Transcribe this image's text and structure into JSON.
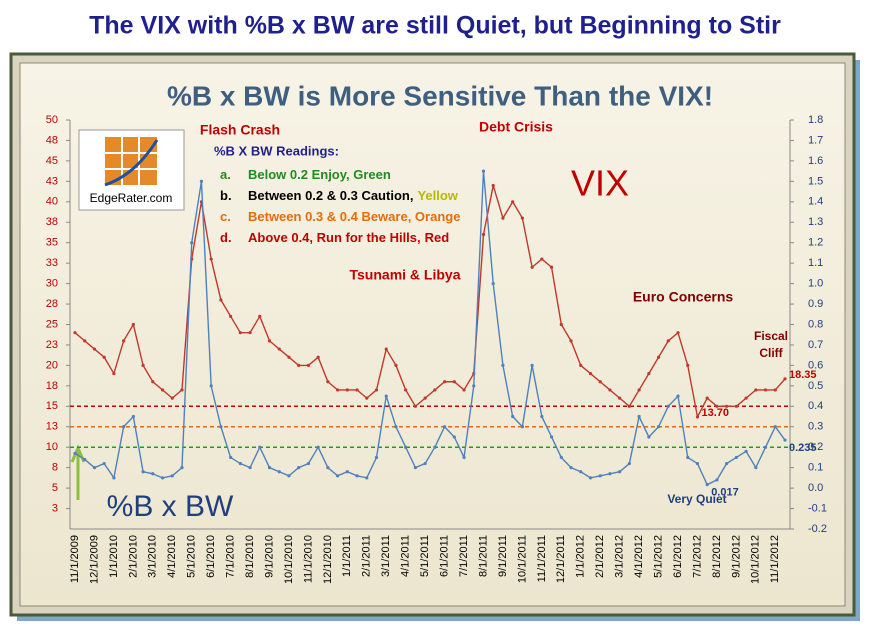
{
  "title": "The VIX with %B x BW are still Quiet, but Beginning to Stir",
  "chart_data": {
    "type": "line",
    "title": "%B x BW is More Sensitive Than the VIX!",
    "logo": "EdgeRater.com",
    "categories": [
      "11/1/2009",
      null,
      "12/1/2009",
      null,
      "1/1/2010",
      null,
      "2/1/2010",
      null,
      "3/1/2010",
      null,
      "4/1/2010",
      null,
      "5/1/2010",
      null,
      "6/1/2010",
      null,
      "7/1/2010",
      null,
      "8/1/2010",
      null,
      "9/1/2010",
      null,
      "10/1/2010",
      null,
      "11/1/2010",
      null,
      "12/1/2010",
      null,
      "1/1/2011",
      null,
      "2/1/2011",
      null,
      "3/1/2011",
      null,
      "4/1/2011",
      null,
      "5/1/2011",
      null,
      "6/1/2011",
      null,
      "7/1/2011",
      null,
      "8/1/2011",
      null,
      "9/1/2011",
      null,
      "10/1/2011",
      null,
      "11/1/2011",
      null,
      "12/1/2011",
      null,
      "1/1/2012",
      null,
      "2/1/2012",
      null,
      "3/1/2012",
      null,
      "4/1/2012",
      null,
      "5/1/2012",
      null,
      "6/1/2012",
      null,
      "7/1/2012",
      null,
      "8/1/2012",
      null,
      "9/1/2012",
      null,
      "10/1/2012",
      null,
      "11/1/2012",
      null
    ],
    "series": [
      {
        "name": "VIX",
        "color": "#c0392b",
        "axis": "y",
        "values": [
          24,
          23,
          22,
          21,
          19,
          23,
          25,
          20,
          18,
          17,
          16,
          17,
          33,
          40,
          33,
          28,
          26,
          24,
          24,
          26,
          23,
          22,
          21,
          20,
          20,
          21,
          18,
          17,
          17,
          17,
          16,
          17,
          22,
          20,
          17,
          15,
          16,
          17,
          18,
          18,
          17,
          19,
          36,
          42,
          38,
          40,
          38,
          32,
          33,
          32,
          25,
          23,
          20,
          19,
          18,
          17,
          16,
          15,
          17,
          19,
          21,
          23,
          24,
          20,
          13.7,
          16,
          15,
          15,
          15,
          16,
          17,
          17,
          17,
          18.35
        ],
        "value_labels": [
          null,
          null,
          null,
          null,
          null,
          null,
          null,
          null,
          null,
          null,
          null,
          null,
          null,
          null,
          null,
          null,
          null,
          null,
          null,
          null,
          null,
          null,
          null,
          null,
          null,
          null,
          null,
          null,
          null,
          null,
          null,
          null,
          null,
          null,
          null,
          null,
          null,
          null,
          null,
          null,
          null,
          null,
          null,
          null,
          null,
          null,
          null,
          null,
          null,
          null,
          null,
          null,
          null,
          null,
          null,
          null,
          null,
          null,
          null,
          null,
          null,
          null,
          null,
          null,
          "13.70",
          null,
          null,
          null,
          null,
          null,
          null,
          null,
          null,
          "18.35"
        ]
      },
      {
        "name": "%B x BW",
        "color": "#4f81bd",
        "axis": "y2",
        "values": [
          0.17,
          0.14,
          0.1,
          0.12,
          0.05,
          0.3,
          0.35,
          0.08,
          0.07,
          0.05,
          0.06,
          0.1,
          1.2,
          1.5,
          0.5,
          0.3,
          0.15,
          0.12,
          0.1,
          0.2,
          0.1,
          0.08,
          0.06,
          0.1,
          0.12,
          0.2,
          0.1,
          0.06,
          0.08,
          0.06,
          0.05,
          0.15,
          0.45,
          0.3,
          0.2,
          0.1,
          0.12,
          0.2,
          0.3,
          0.25,
          0.15,
          0.5,
          1.55,
          1.0,
          0.6,
          0.35,
          0.3,
          0.6,
          0.35,
          0.25,
          0.15,
          0.1,
          0.08,
          0.05,
          0.06,
          0.07,
          0.08,
          0.12,
          0.35,
          0.25,
          0.3,
          0.4,
          0.45,
          0.15,
          0.12,
          0.017,
          0.04,
          0.12,
          0.15,
          0.18,
          0.1,
          0.2,
          0.3,
          0.235
        ],
        "value_labels": [
          null,
          null,
          null,
          null,
          null,
          null,
          null,
          null,
          null,
          null,
          null,
          null,
          null,
          null,
          null,
          null,
          null,
          null,
          null,
          null,
          null,
          null,
          null,
          null,
          null,
          null,
          null,
          null,
          null,
          null,
          null,
          null,
          null,
          null,
          null,
          null,
          null,
          null,
          null,
          null,
          null,
          null,
          null,
          null,
          null,
          null,
          null,
          null,
          null,
          null,
          null,
          null,
          null,
          null,
          null,
          null,
          null,
          null,
          null,
          null,
          null,
          null,
          null,
          null,
          null,
          "0.017",
          null,
          null,
          null,
          null,
          null,
          null,
          null,
          "0.235"
        ]
      }
    ],
    "ylim": [
      0,
      50
    ],
    "yticks": [
      {
        "value": 2.5,
        "label": "3"
      },
      5,
      {
        "value": 7.5,
        "label": "8"
      },
      10,
      {
        "value": 12.5,
        "label": "13"
      },
      15,
      {
        "value": 17.5,
        "label": "18"
      },
      20,
      {
        "value": 22.5,
        "label": "23"
      },
      25,
      {
        "value": 27.5,
        "label": "28"
      },
      30,
      {
        "value": 32.5,
        "label": "33"
      },
      35,
      {
        "value": 37.5,
        "label": "38"
      },
      40,
      {
        "value": 42.5,
        "label": "43"
      },
      45,
      {
        "value": 47.5,
        "label": "48"
      },
      50
    ],
    "y2lim": [
      -0.2,
      1.8
    ],
    "y2ticks": [
      -0.2,
      -0.1,
      {
        "value": 0,
        "label": "0.0"
      },
      0.1,
      0.2,
      0.3,
      0.4,
      0.5,
      0.6,
      0.7,
      0.8,
      0.9,
      {
        "value": 1,
        "label": "1.0"
      },
      1.1,
      1.2,
      1.3,
      1.4,
      1.5,
      1.6,
      1.7,
      1.8
    ],
    "reference_lines": [
      {
        "value": 0.4,
        "color": "#c00000",
        "axis": "y2"
      },
      {
        "value": 0.3,
        "color": "#e46c0a",
        "axis": "y2"
      },
      {
        "value": 0.2,
        "color": "#1aa01a",
        "axis": "y2"
      }
    ],
    "annotations": [
      "Flash Crash",
      "Debt Crisis",
      "Tsunami & Libya",
      "Euro Concerns",
      "Fiscal",
      "Cliff",
      "VIX",
      "%B x BW",
      "Very Quiet"
    ],
    "legend_box": {
      "heading": "%B X BW Readings:",
      "items": [
        [
          {
            "text": "a.",
            "color": "#1e8c1e"
          },
          {
            "text": "Below 0.2 Enjoy, Green",
            "color": "#1e8c1e"
          }
        ],
        [
          {
            "text": "b.",
            "color": "#000000"
          },
          {
            "text": "Between 0.2 & 0.3 Caution,",
            "color": "#000000"
          },
          {
            "text": "Yellow",
            "color": "#b8b800"
          }
        ],
        [
          {
            "text": "c.",
            "color": "#e46c0a"
          },
          {
            "text": "Between 0.3 & 0.4 Beware, Orange",
            "color": "#e46c0a"
          }
        ],
        [
          {
            "text": "d.",
            "color": "#c00000"
          },
          {
            "text": "Above 0.4, Run for the Hills,",
            "color": "#c00000"
          },
          {
            "text": "Red",
            "color": "#c00000"
          }
        ]
      ]
    }
  }
}
